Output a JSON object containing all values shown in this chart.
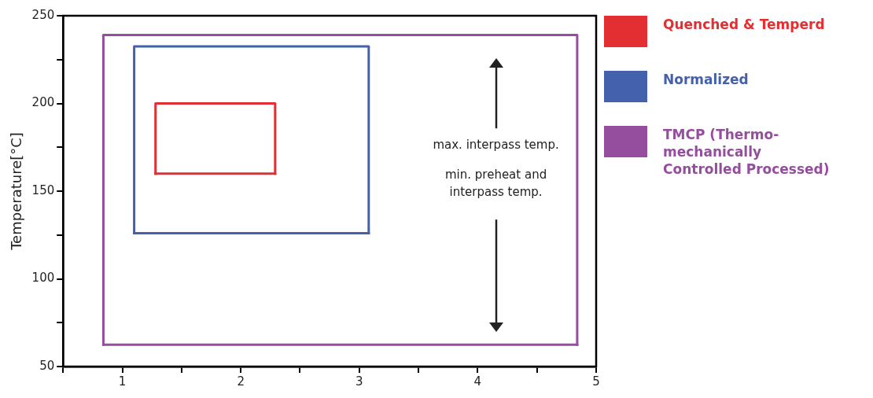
{
  "chart_data": {
    "type": "line",
    "ylabel": "Temperature[°C]",
    "xlim": [
      0.5,
      5
    ],
    "xticks": [
      {
        "value": 0.5,
        "label": null
      },
      1,
      {
        "value": 1.5,
        "label": null
      },
      2,
      {
        "value": 2.5,
        "label": null
      },
      3,
      {
        "value": 3.5,
        "label": null
      },
      4,
      {
        "value": 4.5,
        "label": null
      },
      5
    ],
    "ylim": [
      50,
      250
    ],
    "yticks": [
      50,
      {
        "value": 75,
        "label": null
      },
      100,
      {
        "value": 125,
        "label": null
      },
      150,
      {
        "value": 175,
        "label": null
      },
      200,
      {
        "value": 225,
        "label": null
      },
      250
    ],
    "grid": false,
    "legend": "right",
    "marker": "none",
    "line_style": "solid",
    "annotations": [
      "max. interpass temp.",
      "min. preheat and\ninterpass temp."
    ],
    "series": [
      {
        "name": "Quenched & Temperd",
        "color": "#e32f32",
        "x": [
          1.28,
          1.28,
          2.29,
          2.29
        ],
        "values": [
          160,
          200,
          200,
          160
        ]
      },
      {
        "name": "Normalized",
        "color": "#4361ad",
        "x": [
          1.1,
          1.1,
          3.08,
          3.08
        ],
        "values": [
          126,
          232.5,
          232.5,
          126
        ]
      },
      {
        "name": "TMCP (Thermo-mechanically Controlled Processed)",
        "color": "#944e9d",
        "x": [
          0.84,
          0.84,
          4.84,
          4.84
        ],
        "values": [
          62.5,
          239,
          239,
          62.5
        ]
      },
      {
        "color": "#e32f32",
        "x": [
          1.28,
          2.29
        ],
        "values": [
          160,
          160
        ]
      },
      {
        "color": "#4361ad",
        "x": [
          1.1,
          3.08
        ],
        "values": [
          126,
          126
        ]
      },
      {
        "color": "#944e9d",
        "x": [
          0.84,
          4.84
        ],
        "values": [
          62.5,
          62.5
        ]
      }
    ]
  }
}
